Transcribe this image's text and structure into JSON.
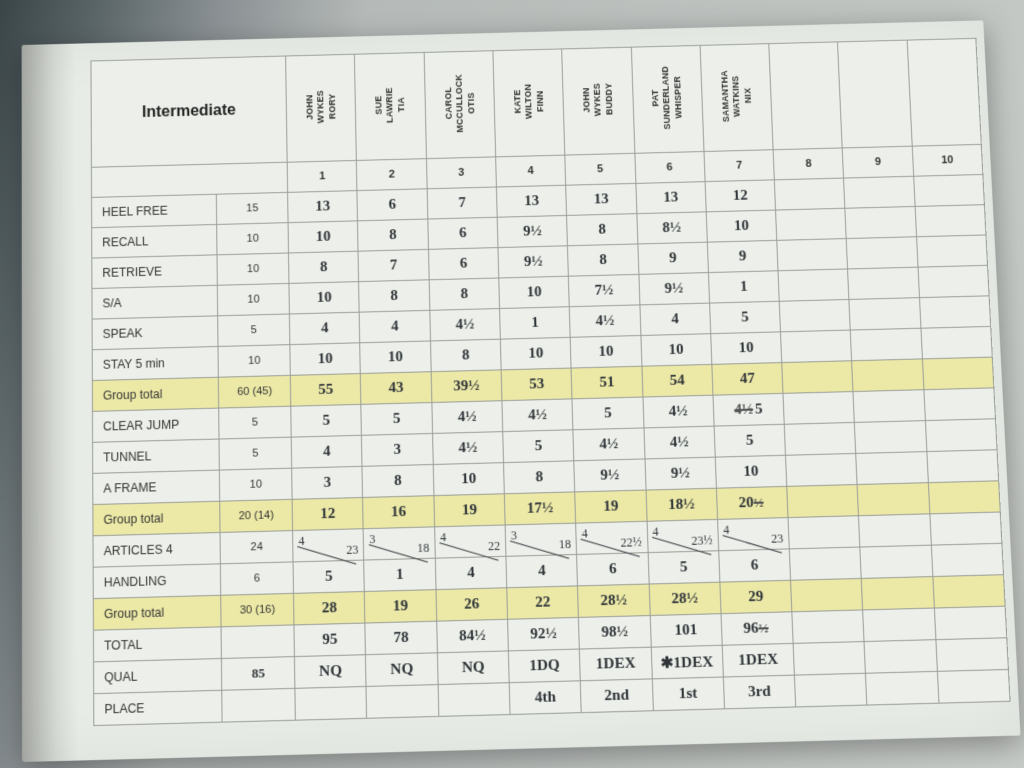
{
  "meta": {
    "title": "Intermediate",
    "qual_threshold": "85"
  },
  "entrants": [
    {
      "num": "1",
      "handler": "JOHN\nWYKES",
      "dog": "RORY"
    },
    {
      "num": "2",
      "handler": "SUE\nLAWRIE",
      "dog": "TIA"
    },
    {
      "num": "3",
      "handler": "CAROL\nMCCULLOCK",
      "dog": "OTIS"
    },
    {
      "num": "4",
      "handler": "KATE\nWILTON",
      "dog": "FINN"
    },
    {
      "num": "5",
      "handler": "JOHN\nWYKES",
      "dog": "BUDDY"
    },
    {
      "num": "6",
      "handler": "PAT\nSUNDERLAND",
      "dog": "WHISPER"
    },
    {
      "num": "7",
      "handler": "SAMANTHA\nWATKINS",
      "dog": "NIX"
    },
    {
      "num": "8",
      "handler": "",
      "dog": ""
    },
    {
      "num": "9",
      "handler": "",
      "dog": ""
    },
    {
      "num": "10",
      "handler": "",
      "dog": ""
    }
  ],
  "rows": [
    {
      "label": "HEEL FREE",
      "max": "15",
      "cells": [
        "13",
        "6",
        "7",
        "13",
        "13",
        "13",
        "12",
        "",
        "",
        ""
      ]
    },
    {
      "label": "RECALL",
      "max": "10",
      "cells": [
        "10",
        "8",
        "6",
        "9½",
        "8",
        "8½",
        "10",
        "",
        "",
        ""
      ]
    },
    {
      "label": "RETRIEVE",
      "max": "10",
      "cells": [
        "8",
        "7",
        "6",
        "9½",
        "8",
        "9",
        "9",
        "",
        "",
        ""
      ]
    },
    {
      "label": "S/A",
      "max": "10",
      "cells": [
        "10",
        "8",
        "8",
        "10",
        "7½",
        "9½",
        "1",
        "",
        "",
        ""
      ]
    },
    {
      "label": "SPEAK",
      "max": "5",
      "cells": [
        "4",
        "4",
        "4½",
        "1",
        "4½",
        "4",
        "5",
        "",
        "",
        ""
      ]
    },
    {
      "label": "STAY 5 min",
      "max": "10",
      "cells": [
        "10",
        "10",
        "8",
        "10",
        "10",
        "10",
        "10",
        "",
        "",
        ""
      ]
    },
    {
      "label": "Group total",
      "max": "60 (45)",
      "highlight": true,
      "cells": [
        "55",
        "43",
        "39½",
        "53",
        "51",
        "54",
        "47",
        "",
        "",
        ""
      ]
    },
    {
      "label": "CLEAR JUMP",
      "max": "5",
      "cells": [
        "5",
        "5",
        "4½",
        "4½",
        "5",
        "4½",
        "5",
        "",
        "",
        ""
      ],
      "strike7": true
    },
    {
      "label": "TUNNEL",
      "max": "5",
      "cells": [
        "4",
        "3",
        "4½",
        "5",
        "4½",
        "4½",
        "5",
        "",
        "",
        ""
      ]
    },
    {
      "label": "A FRAME",
      "max": "10",
      "cells": [
        "3",
        "8",
        "10",
        "8",
        "9½",
        "9½",
        "10",
        "",
        "",
        ""
      ]
    },
    {
      "label": "Group total",
      "max": "20 (14)",
      "highlight": true,
      "cells": [
        "12",
        "16",
        "19",
        "17½",
        "19",
        "18½",
        "20",
        "",
        "",
        ""
      ],
      "strike7b": true
    },
    {
      "label": "ARTICLES 4",
      "max": "24",
      "articles": true,
      "pairs": [
        [
          "4",
          "23"
        ],
        [
          "3",
          "18"
        ],
        [
          "4",
          "22"
        ],
        [
          "3",
          "18"
        ],
        [
          "4",
          "22½"
        ],
        [
          "4",
          "23½"
        ],
        [
          "4",
          "23"
        ]
      ]
    },
    {
      "label": "HANDLING",
      "max": "6",
      "cells": [
        "5",
        "1",
        "4",
        "4",
        "6",
        "5",
        "6",
        "",
        "",
        ""
      ]
    },
    {
      "label": "Group total",
      "max": "30 (16)",
      "highlight": true,
      "cells": [
        "28",
        "19",
        "26",
        "22",
        "28½",
        "28½",
        "29",
        "",
        "",
        ""
      ]
    },
    {
      "label": "TOTAL",
      "max": "",
      "cells": [
        "95",
        "78",
        "84½",
        "92½",
        "98½",
        "101",
        "96",
        "",
        "",
        ""
      ],
      "strike7total": true
    },
    {
      "label": "QUAL",
      "max": "85",
      "maxHand": true,
      "cells": [
        "NQ",
        "NQ",
        "NQ",
        "1DQ",
        "1DEX",
        "✱1DEX",
        "1DEX",
        "",
        "",
        ""
      ]
    },
    {
      "label": "PLACE",
      "max": "",
      "cells": [
        "",
        "",
        "",
        "4th",
        "2nd",
        "1st",
        "3rd",
        "",
        "",
        ""
      ]
    }
  ],
  "colors": {
    "paper": "#e8ece6",
    "grid": "#9a9e97",
    "highlight": "#ece9a7",
    "ink": "#2f3438"
  }
}
